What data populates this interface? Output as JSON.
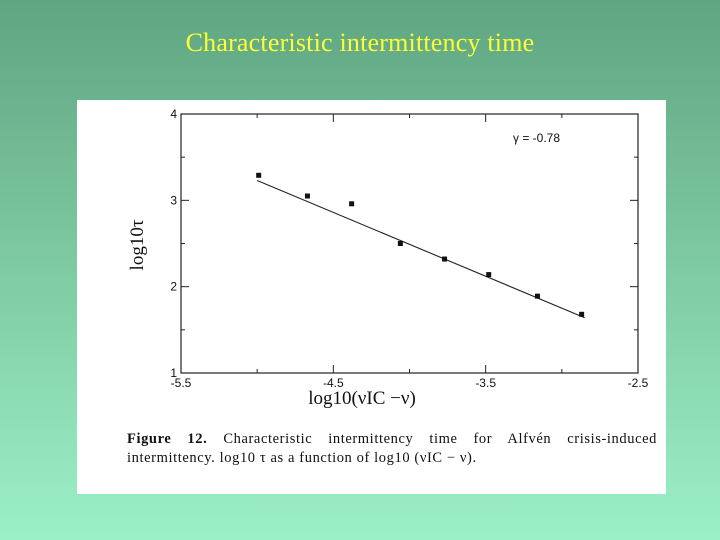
{
  "slide": {
    "title": "Characteristic intermittency time"
  },
  "figure": {
    "caption_label": "Figure 12.",
    "caption_text": "Characteristic intermittency time for Alfvén crisis-induced intermittency. log10 τ as a function of log10 (νIC − ν)."
  },
  "chart_data": {
    "type": "scatter",
    "xlim": [
      -5.5,
      -2.5
    ],
    "ylim": [
      1,
      4
    ],
    "xticks": [
      "-5.5",
      "-4.5",
      "-3.5",
      "-2.5"
    ],
    "xtick_values": [
      -5.5,
      -4.5,
      -3.5,
      -2.5
    ],
    "yticks": [
      "4",
      "3",
      "2",
      "1"
    ],
    "ytick_values": [
      4,
      3,
      2,
      1
    ],
    "xlabel": "log10(νIC −ν)",
    "ylabel": "log10τ",
    "annotation": "γ = -0.78",
    "grid": false,
    "points": [
      {
        "x": -4.99,
        "y": 3.29
      },
      {
        "x": -4.67,
        "y": 3.05
      },
      {
        "x": -4.38,
        "y": 2.96
      },
      {
        "x": -4.06,
        "y": 2.5
      },
      {
        "x": -3.77,
        "y": 2.32
      },
      {
        "x": -3.48,
        "y": 2.14
      },
      {
        "x": -3.16,
        "y": 1.89
      },
      {
        "x": -2.87,
        "y": 1.68
      }
    ],
    "fit_line": {
      "x": [
        -5.0,
        -2.85
      ],
      "y": [
        3.23,
        1.64
      ]
    }
  }
}
